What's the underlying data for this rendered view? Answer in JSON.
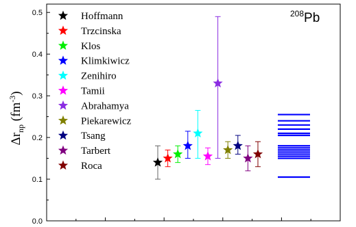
{
  "chart_data": {
    "type": "scatter",
    "title": "",
    "xlabel": "",
    "ylabel": "Δr_np (fm^-3)",
    "ylabel_parts": {
      "delta": "Δr",
      "sub": "np",
      "unit_open": " (fm",
      "unit_sup": "-3",
      "unit_close": ")"
    },
    "ylim": [
      0.0,
      0.52
    ],
    "yticks": [
      0.0,
      0.1,
      0.2,
      0.3,
      0.4,
      0.5
    ],
    "ytick_labels": [
      "0.0",
      "0.1",
      "0.2",
      "0.3",
      "0.4",
      "0.5"
    ],
    "xticks_count": 4,
    "grid": false,
    "legend_position": "top-left",
    "marker": "star",
    "annotation": {
      "sup": "208",
      "text": "Pb"
    },
    "series": [
      {
        "name": "Hoffmann",
        "color": "#000000",
        "y": 0.14,
        "err_low": 0.1,
        "err_high": 0.18
      },
      {
        "name": "Trzcinska",
        "color": "#ff0000",
        "y": 0.15,
        "err_low": 0.13,
        "err_high": 0.17
      },
      {
        "name": "Klos",
        "color": "#00ee00",
        "y": 0.16,
        "err_low": 0.14,
        "err_high": 0.18
      },
      {
        "name": "Klimkiwicz",
        "color": "#0000ff",
        "y": 0.18,
        "err_low": 0.15,
        "err_high": 0.215
      },
      {
        "name": "Zenihiro",
        "color": "#00ffff",
        "y": 0.21,
        "err_low": 0.15,
        "err_high": 0.265
      },
      {
        "name": "Tamii",
        "color": "#ff00ff",
        "y": 0.155,
        "err_low": 0.135,
        "err_high": 0.175
      },
      {
        "name": "Abrahamya",
        "color": "#8a2be2",
        "y": 0.33,
        "err_low": 0.15,
        "err_high": 0.49
      },
      {
        "name": "Piekarewicz",
        "color": "#808000",
        "y": 0.17,
        "err_low": 0.15,
        "err_high": 0.19
      },
      {
        "name": "Tsang",
        "color": "#000080",
        "y": 0.18,
        "err_low": 0.16,
        "err_high": 0.205
      },
      {
        "name": "Tarbert",
        "color": "#800080",
        "y": 0.15,
        "err_low": 0.12,
        "err_high": 0.18
      },
      {
        "name": "Roca",
        "color": "#800000",
        "y": 0.16,
        "err_low": 0.13,
        "err_high": 0.19
      }
    ],
    "horizontal_lines": {
      "color": "#0000ff",
      "values": [
        0.105,
        0.15,
        0.155,
        0.16,
        0.165,
        0.17,
        0.175,
        0.18,
        0.205,
        0.21,
        0.22,
        0.23,
        0.24,
        0.255
      ]
    }
  }
}
